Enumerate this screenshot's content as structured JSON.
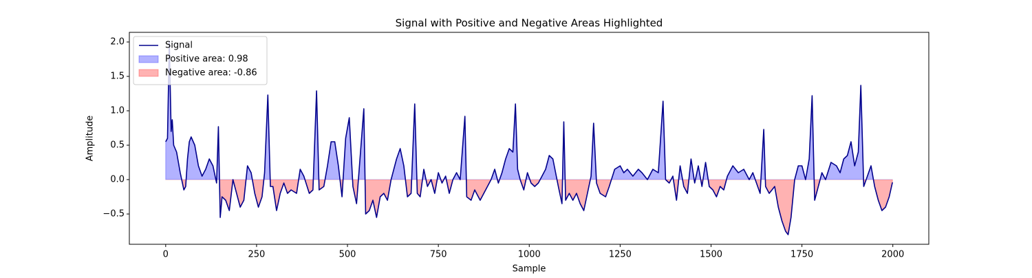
{
  "chart_data": {
    "type": "line",
    "title": "Signal with Positive and Negative Areas Highlighted",
    "x_label": "Sample",
    "y_label": "Amplitude",
    "x": [
      0,
      5,
      10,
      15,
      18,
      22,
      30,
      40,
      50,
      55,
      60,
      65,
      70,
      80,
      90,
      100,
      110,
      120,
      130,
      140,
      145,
      150,
      155,
      165,
      175,
      185,
      195,
      205,
      215,
      225,
      235,
      245,
      255,
      265,
      272,
      281,
      288,
      295,
      305,
      315,
      325,
      335,
      345,
      360,
      370,
      380,
      395,
      405,
      415,
      422,
      435,
      445,
      455,
      465,
      475,
      485,
      495,
      505,
      515,
      525,
      545,
      550,
      560,
      570,
      580,
      590,
      600,
      610,
      620,
      635,
      645,
      655,
      665,
      675,
      685,
      692,
      700,
      710,
      720,
      730,
      740,
      750,
      760,
      770,
      780,
      790,
      800,
      810,
      823,
      828,
      840,
      850,
      865,
      880,
      895,
      905,
      915,
      925,
      935,
      945,
      955,
      962,
      968,
      975,
      985,
      995,
      1005,
      1015,
      1025,
      1045,
      1055,
      1065,
      1080,
      1090,
      1095,
      1100,
      1110,
      1120,
      1130,
      1140,
      1150,
      1160,
      1170,
      1177,
      1185,
      1195,
      1210,
      1220,
      1235,
      1250,
      1260,
      1270,
      1285,
      1300,
      1310,
      1325,
      1340,
      1355,
      1368,
      1375,
      1385,
      1395,
      1405,
      1415,
      1425,
      1435,
      1445,
      1455,
      1465,
      1475,
      1485,
      1495,
      1505,
      1515,
      1525,
      1535,
      1545,
      1560,
      1575,
      1590,
      1605,
      1615,
      1625,
      1635,
      1645,
      1650,
      1660,
      1675,
      1685,
      1695,
      1705,
      1712,
      1720,
      1730,
      1740,
      1750,
      1760,
      1770,
      1778,
      1785,
      1795,
      1805,
      1815,
      1830,
      1845,
      1855,
      1865,
      1875,
      1885,
      1895,
      1905,
      1912,
      1920,
      1930,
      1940,
      1950,
      1960,
      1970,
      1980,
      1990,
      1999
    ],
    "series": [
      {
        "name": "Signal",
        "color": "#00008b",
        "values": [
          0.55,
          0.6,
          2.0,
          0.7,
          0.87,
          0.5,
          0.4,
          0.1,
          -0.15,
          -0.1,
          0.3,
          0.55,
          0.62,
          0.5,
          0.2,
          0.05,
          0.15,
          0.3,
          0.2,
          -0.05,
          0.77,
          -0.55,
          -0.25,
          -0.3,
          -0.45,
          0.0,
          -0.2,
          -0.4,
          -0.3,
          0.2,
          0.1,
          -0.2,
          -0.4,
          -0.25,
          0.1,
          1.23,
          -0.1,
          -0.1,
          -0.45,
          -0.2,
          -0.05,
          -0.2,
          -0.15,
          -0.2,
          0.15,
          0.05,
          -0.2,
          -0.15,
          1.29,
          -0.15,
          -0.1,
          0.2,
          0.55,
          0.55,
          0.2,
          -0.25,
          0.6,
          0.9,
          -0.1,
          -0.35,
          1.03,
          -0.5,
          -0.45,
          -0.3,
          -0.55,
          -0.25,
          -0.2,
          -0.3,
          0.0,
          0.3,
          0.45,
          0.2,
          -0.25,
          -0.2,
          1.1,
          -0.2,
          -0.25,
          0.15,
          -0.1,
          0.0,
          -0.2,
          0.1,
          -0.05,
          0.05,
          -0.2,
          0.0,
          0.1,
          0.0,
          0.92,
          -0.25,
          -0.3,
          -0.15,
          -0.3,
          -0.15,
          0.0,
          0.15,
          -0.05,
          0.1,
          0.3,
          0.45,
          0.4,
          1.1,
          0.15,
          0.0,
          -0.15,
          0.1,
          -0.05,
          -0.1,
          -0.05,
          0.15,
          0.35,
          0.3,
          -0.1,
          -0.35,
          0.84,
          -0.3,
          -0.2,
          -0.3,
          -0.2,
          -0.35,
          -0.45,
          -0.2,
          0.05,
          0.82,
          -0.05,
          -0.2,
          -0.25,
          -0.1,
          0.15,
          0.2,
          0.1,
          0.15,
          0.05,
          0.15,
          0.1,
          0.0,
          0.15,
          0.1,
          1.14,
          0.0,
          -0.05,
          0.05,
          -0.3,
          0.2,
          -0.1,
          -0.2,
          0.3,
          -0.05,
          0.2,
          -0.1,
          0.25,
          -0.1,
          -0.15,
          -0.25,
          -0.1,
          -0.15,
          0.05,
          0.2,
          0.1,
          0.15,
          0.0,
          0.1,
          -0.05,
          -0.2,
          0.73,
          -0.1,
          -0.2,
          -0.1,
          -0.4,
          -0.6,
          -0.75,
          -0.8,
          -0.55,
          0.0,
          0.2,
          0.2,
          0.0,
          0.3,
          1.22,
          -0.3,
          -0.1,
          0.1,
          0.0,
          0.25,
          0.2,
          0.1,
          0.3,
          0.35,
          0.55,
          0.2,
          0.4,
          1.37,
          -0.1,
          0.05,
          0.2,
          -0.1,
          -0.3,
          -0.45,
          -0.4,
          -0.25,
          -0.04
        ]
      }
    ],
    "positive_fill": {
      "name": "Positive area: 0.98",
      "color": "#0000ff"
    },
    "negative_fill": {
      "name": "Negative area: -0.86",
      "color": "#ff0000"
    },
    "xlim": [
      -99.95,
      2098.95
    ],
    "ylim": [
      -0.94,
      2.14
    ],
    "xticks": [
      0,
      250,
      500,
      750,
      1000,
      1250,
      1500,
      1750,
      2000
    ],
    "yticks": [
      {
        "value": -0.5,
        "label": "−0.5"
      },
      {
        "value": 0,
        "label": "0.0"
      },
      {
        "value": 0.5,
        "label": "0.5"
      },
      {
        "value": 1,
        "label": "1.0"
      },
      {
        "value": 1.5,
        "label": "1.5"
      },
      {
        "value": 2,
        "label": "2.0"
      }
    ],
    "legend": "upper left"
  }
}
